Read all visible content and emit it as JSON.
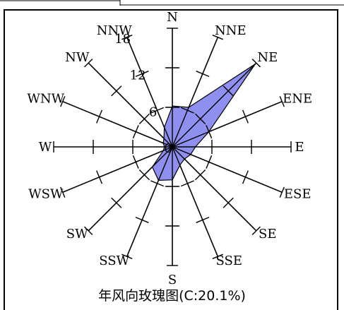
{
  "chart_data": {
    "type": "radar",
    "title": "年风向玫瑰图(C:20.1%)",
    "directions": [
      "N",
      "NNE",
      "NE",
      "ENE",
      "E",
      "ESE",
      "SE",
      "SSE",
      "S",
      "SSW",
      "SW",
      "WSW",
      "W",
      "WNW",
      "NW",
      "NNW"
    ],
    "values": [
      6.2,
      6.5,
      17.8,
      6.0,
      3.5,
      3.0,
      2.6,
      3.0,
      5.0,
      5.5,
      4.3,
      1.5,
      1.2,
      1.5,
      1.8,
      3.2
    ],
    "radial_ticks": [
      0,
      6,
      12,
      18
    ],
    "rmax": 18,
    "fill_color": "#8f8ff0",
    "stroke_color": "#000000"
  }
}
